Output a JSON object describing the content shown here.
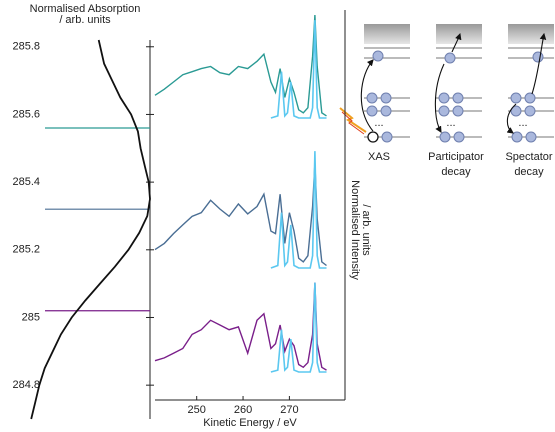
{
  "chart_data": [
    {
      "type": "line",
      "orientation": "vertical",
      "title": [
        "Normalised Absorption",
        "/ arb. units"
      ],
      "x": [
        285.82,
        285.75,
        285.7,
        285.65,
        285.6,
        285.55,
        285.5,
        285.45,
        285.4,
        285.35,
        285.3,
        285.25,
        285.2,
        285.15,
        285.1,
        285.05,
        285.0,
        284.95,
        284.9,
        284.85,
        284.8,
        284.75,
        284.7
      ],
      "series": [
        {
          "color": "#111111",
          "values": [
            0.62,
            0.66,
            0.72,
            0.78,
            0.86,
            0.91,
            0.93,
            0.96,
            0.99,
            1.0,
            0.98,
            0.92,
            0.84,
            0.74,
            0.63,
            0.52,
            0.42,
            0.34,
            0.28,
            0.22,
            0.18,
            0.15,
            0.12
          ]
        }
      ],
      "xlim": [
        284.7,
        285.82
      ],
      "xticks": [
        284.8,
        285.0,
        285.2,
        285.4,
        285.6,
        285.8
      ],
      "markers": [
        {
          "value": 285.56,
          "color": "#2a9a94"
        },
        {
          "value": 285.32,
          "color": "#4a6e94"
        },
        {
          "value": 285.02,
          "color": "#7a1f8a"
        }
      ]
    },
    {
      "type": "line",
      "x_label": "Kinetic Energy / eV",
      "y_label": [
        "Normalised Intensity",
        "/ arb. units"
      ],
      "xlim": [
        241,
        282
      ],
      "xticks": [
        250,
        260,
        270
      ],
      "panels": [
        {
          "series": [
            {
              "color": "#2a9a94",
              "x": [
                241,
                243,
                245,
                247,
                249,
                251,
                253,
                255,
                257,
                259,
                261,
                263,
                264.5,
                266,
                267,
                268,
                269,
                270,
                271,
                272,
                273,
                274,
                275,
                275.5,
                276,
                277,
                278
              ],
              "values": [
                0.22,
                0.28,
                0.35,
                0.42,
                0.45,
                0.48,
                0.5,
                0.44,
                0.42,
                0.5,
                0.48,
                0.55,
                0.62,
                0.35,
                0.25,
                0.48,
                0.2,
                0.38,
                0.25,
                0.08,
                0.05,
                0.1,
                0.6,
                1.0,
                0.5,
                0.05,
                0.02
              ]
            },
            {
              "color": "#5bc8f0",
              "x": [
                266,
                267.5,
                268.3,
                269,
                269.6,
                270.3,
                271,
                272,
                274.5,
                275,
                275.5,
                276,
                276.5,
                278
              ],
              "values": [
                0,
                0.02,
                0.45,
                0.02,
                0.05,
                0.35,
                0.02,
                0,
                0,
                0.1,
                0.95,
                0.1,
                0,
                0
              ]
            }
          ]
        },
        {
          "series": [
            {
              "color": "#4a6e94",
              "x": [
                241,
                243,
                245,
                247,
                249,
                251,
                253,
                255,
                257,
                259,
                261,
                263,
                264.5,
                266,
                267,
                268,
                269,
                270,
                271,
                272,
                273,
                274,
                275,
                275.5,
                276,
                277,
                278
              ],
              "values": [
                0.15,
                0.2,
                0.28,
                0.35,
                0.42,
                0.45,
                0.55,
                0.48,
                0.42,
                0.52,
                0.44,
                0.5,
                0.6,
                0.3,
                0.28,
                0.6,
                0.2,
                0.45,
                0.3,
                0.08,
                0.05,
                0.1,
                0.5,
                0.85,
                0.4,
                0.05,
                0.02
              ]
            },
            {
              "color": "#5bc8f0",
              "x": [
                266,
                267.5,
                268.3,
                269,
                269.6,
                270.3,
                271,
                272,
                274.5,
                275,
                275.5,
                276,
                276.5,
                278
              ],
              "values": [
                0,
                0.02,
                0.45,
                0.02,
                0.05,
                0.35,
                0.02,
                0,
                0,
                0.1,
                0.95,
                0.1,
                0,
                0
              ]
            }
          ]
        },
        {
          "series": [
            {
              "color": "#7a1f8a",
              "x": [
                241,
                243,
                245,
                247,
                249,
                251,
                253,
                255,
                257,
                259,
                261,
                263,
                264.5,
                266,
                267,
                268,
                269,
                270,
                271,
                272,
                273,
                274,
                275,
                275.5,
                276,
                277,
                278
              ],
              "values": [
                0.12,
                0.15,
                0.2,
                0.25,
                0.4,
                0.45,
                0.55,
                0.5,
                0.45,
                0.48,
                0.2,
                0.55,
                0.62,
                0.25,
                0.3,
                0.5,
                0.22,
                0.35,
                0.28,
                0.08,
                0.05,
                0.1,
                0.4,
                0.95,
                0.3,
                0.05,
                0.02
              ]
            },
            {
              "color": "#5bc8f0",
              "x": [
                266,
                267.5,
                268.3,
                269,
                269.6,
                270.3,
                271,
                272,
                274.5,
                275,
                275.5,
                276,
                276.5,
                278
              ],
              "values": [
                0,
                0.02,
                0.45,
                0.02,
                0.05,
                0.35,
                0.02,
                0,
                0,
                0.1,
                0.95,
                0.1,
                0,
                0
              ]
            }
          ]
        }
      ]
    }
  ],
  "diagram": {
    "labels": [
      [
        "XAS"
      ],
      [
        "Participator",
        "decay"
      ],
      [
        "Spectator",
        "decay"
      ]
    ]
  }
}
